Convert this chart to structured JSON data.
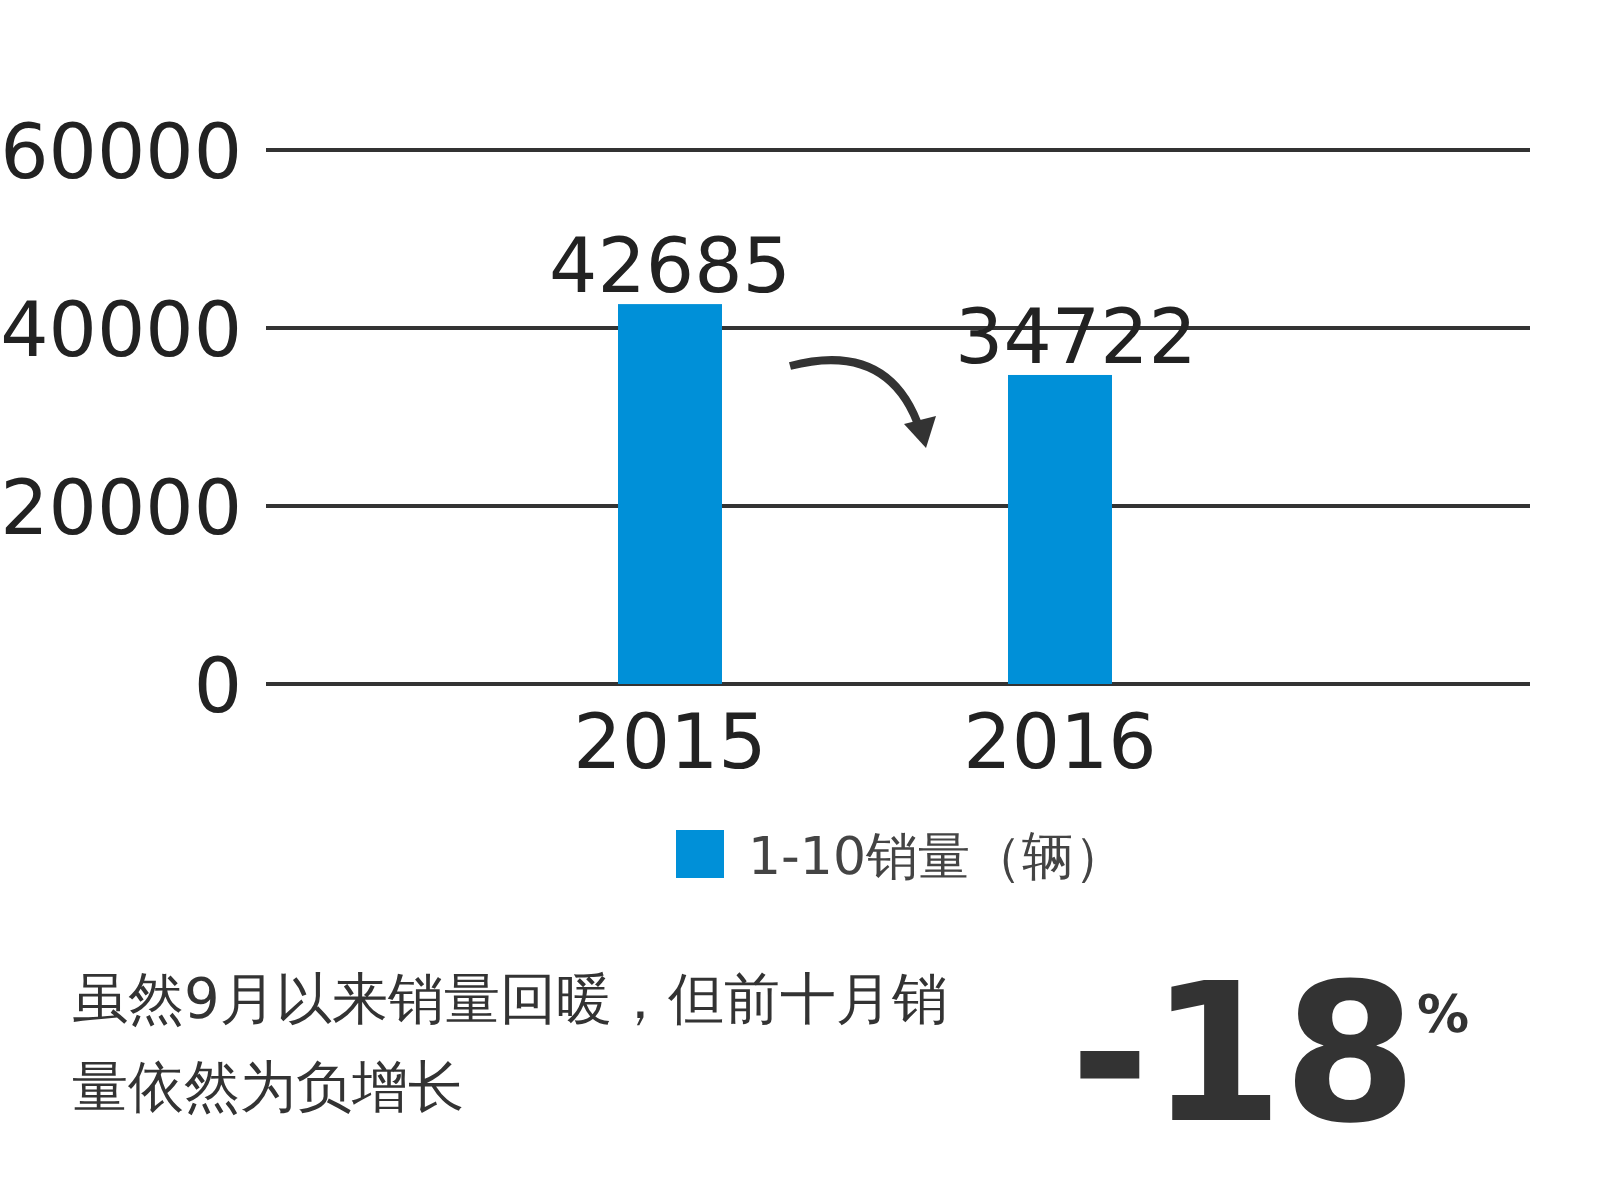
{
  "chart_data": {
    "type": "bar",
    "categories": [
      "2015",
      "2016"
    ],
    "series": [
      {
        "name": "1-10销量（辆）",
        "color": "#0090d8",
        "values": [
          42685,
          34722
        ]
      }
    ],
    "ylim": [
      0,
      60000
    ],
    "yticks": [
      0,
      20000,
      40000,
      60000
    ],
    "grid": "y",
    "legend": "bottom",
    "data_labels": true,
    "annotations": [
      "虽然9月以来销量回暖，但前十月销量依然为负增长",
      "-18$^{%}$"
    ]
  }
}
